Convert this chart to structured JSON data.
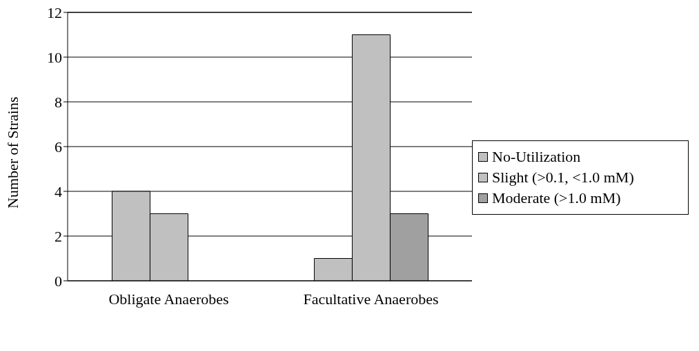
{
  "chart_data": {
    "type": "bar",
    "ylabel": "Number of Strains",
    "categories": [
      "Obligate Anaerobes",
      "Facultative Anaerobes"
    ],
    "series": [
      {
        "name": "No-Utilization",
        "color": "#c0c0c0",
        "values": [
          4,
          1
        ]
      },
      {
        "name": "Slight (>0.1, <1.0 mM)",
        "color": "#c0c0c0",
        "values": [
          3,
          11
        ]
      },
      {
        "name": "Moderate (>1.0 mM)",
        "color": "#a0a0a0",
        "values": [
          0,
          3
        ]
      }
    ],
    "ylim": [
      0,
      12
    ],
    "yticks": [
      0,
      2,
      4,
      6,
      8,
      10,
      12
    ],
    "grid": "y",
    "legend": "right"
  }
}
